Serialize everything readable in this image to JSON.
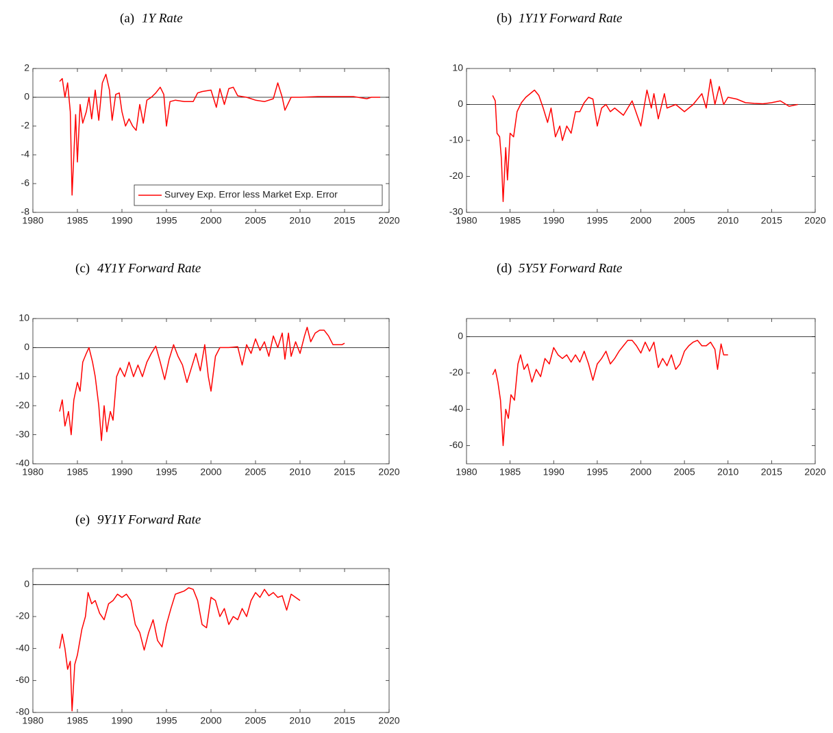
{
  "chart_data": [
    {
      "type": "line",
      "label": "(a)",
      "title": "1Y Rate",
      "x": [
        1983.0,
        1983.3,
        1983.6,
        1983.9,
        1984.2,
        1984.4,
        1984.6,
        1984.8,
        1985.0,
        1985.3,
        1985.6,
        1986.0,
        1986.3,
        1986.6,
        1987.0,
        1987.4,
        1987.8,
        1988.2,
        1988.6,
        1988.9,
        1989.3,
        1989.7,
        1990.0,
        1990.4,
        1990.8,
        1991.2,
        1991.6,
        1992.0,
        1992.4,
        1992.8,
        1993.3,
        1993.8,
        1994.3,
        1994.7,
        1995.0,
        1995.4,
        1996,
        1997,
        1998,
        1998.5,
        1999,
        2000,
        2000.6,
        2001,
        2001.5,
        2002,
        2002.5,
        2003,
        2004,
        2005,
        2006,
        2007,
        2007.5,
        2008,
        2008.3,
        2009,
        2010,
        2012,
        2014,
        2016,
        2017.5,
        2018,
        2019
      ],
      "series": [
        {
          "name": "Survey Exp. Error less Market Exp. Error",
          "color": "#ff0000",
          "values": [
            1.1,
            1.3,
            0.0,
            1.0,
            -1.0,
            -6.8,
            -4.0,
            -1.2,
            -4.5,
            -0.5,
            -1.8,
            -1.0,
            0.0,
            -1.5,
            0.5,
            -1.6,
            1.0,
            1.6,
            0.5,
            -1.6,
            0.2,
            0.3,
            -1.0,
            -2.0,
            -1.5,
            -2.0,
            -2.3,
            -0.5,
            -1.8,
            -0.2,
            0.0,
            0.3,
            0.7,
            0.2,
            -2.0,
            -0.3,
            -0.2,
            -0.3,
            -0.3,
            0.3,
            0.4,
            0.5,
            -0.7,
            0.6,
            -0.5,
            0.6,
            0.7,
            0.1,
            0.0,
            -0.2,
            -0.3,
            -0.1,
            1.0,
            0.0,
            -0.9,
            0.0,
            0.0,
            0.05,
            0.05,
            0.05,
            -0.1,
            0.0,
            0.0
          ]
        }
      ],
      "legend": "lower right",
      "hline": 0,
      "xlim": [
        1980,
        2020
      ],
      "xticks": [
        1980,
        1985,
        1990,
        1995,
        2000,
        2005,
        2010,
        2015,
        2020
      ],
      "ylim": [
        -8,
        2
      ],
      "yticks": [
        -8,
        -6,
        -4,
        -2,
        0,
        2
      ]
    },
    {
      "type": "line",
      "label": "(b)",
      "title": "1Y1Y Forward Rate",
      "x": [
        1983.0,
        1983.3,
        1983.5,
        1983.8,
        1984.0,
        1984.2,
        1984.5,
        1984.7,
        1985.0,
        1985.4,
        1985.8,
        1986.3,
        1986.8,
        1987.3,
        1987.8,
        1988.3,
        1988.8,
        1989.3,
        1989.7,
        1990.2,
        1990.7,
        1991.0,
        1991.5,
        1992.0,
        1992.5,
        1993.0,
        1993.5,
        1994.0,
        1994.5,
        1995.0,
        1995.5,
        1996,
        1996.5,
        1997,
        1998,
        1999,
        2000,
        2000.7,
        2001.2,
        2001.5,
        2002,
        2002.7,
        2003,
        2004,
        2005,
        2006,
        2007,
        2007.5,
        2008,
        2008.5,
        2009,
        2009.5,
        2010,
        2011,
        2012,
        2013,
        2014,
        2015,
        2016,
        2017,
        2018
      ],
      "series": [
        {
          "color": "#ff0000",
          "values": [
            2.5,
            1.0,
            -8,
            -9,
            -15,
            -27,
            -12,
            -21,
            -8,
            -9,
            -2,
            0.5,
            2,
            3,
            4,
            2.5,
            -1,
            -5,
            -1,
            -9,
            -6,
            -10,
            -6,
            -8,
            -2,
            -2,
            0.5,
            2,
            1.5,
            -6,
            -1,
            0,
            -2,
            -1,
            -3,
            1,
            -6,
            4,
            -1,
            3,
            -4,
            3,
            -1,
            0,
            -2,
            0,
            3,
            -1,
            7,
            0,
            5,
            0,
            2,
            1.5,
            0.5,
            0.3,
            0.2,
            0.5,
            1,
            -0.5,
            0
          ]
        }
      ],
      "hline": 0,
      "xlim": [
        1980,
        2020
      ],
      "xticks": [
        1980,
        1985,
        1990,
        1995,
        2000,
        2005,
        2010,
        2015,
        2020
      ],
      "ylim": [
        -30,
        10
      ],
      "yticks": [
        -30,
        -20,
        -10,
        0,
        10
      ]
    },
    {
      "type": "line",
      "label": "(c)",
      "title": "4Y1Y Forward Rate",
      "x": [
        1983.0,
        1983.3,
        1983.6,
        1984.0,
        1984.3,
        1984.6,
        1985.0,
        1985.3,
        1985.6,
        1986.0,
        1986.3,
        1986.7,
        1987.0,
        1987.4,
        1987.7,
        1988.0,
        1988.3,
        1988.7,
        1989.0,
        1989.4,
        1989.8,
        1990.3,
        1990.8,
        1991.3,
        1991.8,
        1992.3,
        1992.8,
        1993.3,
        1993.8,
        1994.3,
        1994.8,
        1995.3,
        1995.8,
        1996.3,
        1996.8,
        1997.3,
        1997.8,
        1998.3,
        1998.8,
        1999.3,
        1999.7,
        2000.0,
        2000.5,
        2001,
        2002,
        2003,
        2003.5,
        2004,
        2004.5,
        2005,
        2005.5,
        2006,
        2006.5,
        2007,
        2007.5,
        2008,
        2008.3,
        2008.7,
        2009,
        2009.5,
        2010,
        2010.5,
        2010.8,
        2011.2,
        2011.7,
        2012.2,
        2012.7,
        2013.2,
        2013.7,
        2014.2,
        2014.7,
        2015
      ],
      "series": [
        {
          "color": "#ff0000",
          "values": [
            -22,
            -18,
            -27,
            -22,
            -30,
            -18,
            -12,
            -15,
            -5,
            -2,
            0,
            -5,
            -10,
            -20,
            -32,
            -20,
            -29,
            -22,
            -25,
            -10,
            -7,
            -10,
            -5,
            -10,
            -6,
            -10,
            -5,
            -2,
            0.5,
            -5,
            -11,
            -4,
            1,
            -3,
            -6,
            -12,
            -7,
            -2,
            -8,
            1,
            -10,
            -15,
            -3,
            0,
            0,
            0.3,
            -6,
            1,
            -2,
            3,
            -1,
            2,
            -3,
            4,
            0,
            5,
            -4,
            5,
            -3,
            2,
            -2,
            4,
            7,
            2,
            5,
            6,
            6,
            4,
            1,
            1,
            1,
            1.5
          ]
        }
      ],
      "hline": 0,
      "xlim": [
        1980,
        2020
      ],
      "xticks": [
        1980,
        1985,
        1990,
        1995,
        2000,
        2005,
        2010,
        2015,
        2020
      ],
      "ylim": [
        -40,
        10
      ],
      "yticks": [
        -40,
        -30,
        -20,
        -10,
        0,
        10
      ]
    },
    {
      "type": "line",
      "label": "(d)",
      "title": "5Y5Y Forward Rate",
      "x": [
        1983.0,
        1983.3,
        1983.6,
        1983.9,
        1984.2,
        1984.5,
        1984.8,
        1985.1,
        1985.5,
        1985.9,
        1986.2,
        1986.6,
        1987,
        1987.5,
        1988,
        1988.5,
        1989,
        1989.5,
        1990,
        1990.5,
        1991,
        1991.5,
        1992,
        1992.5,
        1993,
        1993.5,
        1994,
        1994.5,
        1995,
        1995.5,
        1996,
        1996.5,
        1997,
        1997.5,
        1998,
        1998.5,
        1999,
        1999.5,
        2000,
        2000.5,
        2001,
        2001.5,
        2002,
        2002.5,
        2003,
        2003.5,
        2004,
        2004.5,
        2005,
        2005.5,
        2006,
        2006.5,
        2007,
        2007.5,
        2008,
        2008.5,
        2008.8,
        2009.2,
        2009.5,
        2010
      ],
      "series": [
        {
          "color": "#ff0000",
          "values": [
            -21,
            -18,
            -25,
            -35,
            -60,
            -40,
            -45,
            -32,
            -35,
            -15,
            -10,
            -18,
            -15,
            -25,
            -18,
            -22,
            -12,
            -15,
            -6,
            -10,
            -12,
            -10,
            -14,
            -10,
            -14,
            -8,
            -15,
            -24,
            -15,
            -12,
            -8,
            -15,
            -12,
            -8,
            -5,
            -2,
            -2,
            -5,
            -9,
            -3,
            -8,
            -3,
            -17,
            -12,
            -16,
            -10,
            -18,
            -15,
            -8,
            -5,
            -3,
            -2,
            -5,
            -5,
            -3,
            -7,
            -18,
            -4,
            -10,
            -10
          ]
        }
      ],
      "hline": 0,
      "xlim": [
        1980,
        2020
      ],
      "xticks": [
        1980,
        1985,
        1990,
        1995,
        2000,
        2005,
        2010,
        2015,
        2020
      ],
      "ylim": [
        -70,
        10
      ],
      "yticks": [
        -60,
        -40,
        -20,
        0
      ]
    },
    {
      "type": "line",
      "label": "(e)",
      "title": "9Y1Y Forward Rate",
      "x": [
        1983.0,
        1983.3,
        1983.6,
        1983.9,
        1984.2,
        1984.4,
        1984.7,
        1985,
        1985.5,
        1985.9,
        1986.2,
        1986.6,
        1987,
        1987.5,
        1988,
        1988.5,
        1989,
        1989.5,
        1990,
        1990.5,
        1991,
        1991.5,
        1992,
        1992.5,
        1993,
        1993.5,
        1994,
        1994.5,
        1995,
        1995.5,
        1996,
        1996.5,
        1997,
        1997.5,
        1998,
        1998.5,
        1999,
        1999.5,
        2000,
        2000.5,
        2001,
        2001.5,
        2002,
        2002.5,
        2003,
        2003.5,
        2004,
        2004.5,
        2005,
        2005.5,
        2006,
        2006.5,
        2007,
        2007.5,
        2008,
        2008.5,
        2009,
        2009.5,
        2010
      ],
      "series": [
        {
          "color": "#ff0000",
          "values": [
            -40,
            -31,
            -40,
            -53,
            -48,
            -79,
            -50,
            -44,
            -28,
            -20,
            -5,
            -12,
            -10,
            -18,
            -22,
            -12,
            -10,
            -6,
            -8,
            -6,
            -10,
            -25,
            -30,
            -41,
            -30,
            -22,
            -35,
            -39,
            -25,
            -15,
            -6,
            -5,
            -4,
            -2,
            -3,
            -10,
            -25,
            -27,
            -8,
            -10,
            -20,
            -15,
            -25,
            -20,
            -22,
            -15,
            -20,
            -10,
            -5,
            -8,
            -3,
            -7,
            -5,
            -8,
            -7,
            -16,
            -6,
            -8,
            -10
          ]
        }
      ],
      "hline": 0,
      "xlim": [
        1980,
        2020
      ],
      "xticks": [
        1980,
        1985,
        1990,
        1995,
        2000,
        2005,
        2010,
        2015,
        2020
      ],
      "ylim": [
        -80,
        10
      ],
      "yticks": [
        -80,
        -60,
        -40,
        -20,
        0
      ]
    }
  ]
}
